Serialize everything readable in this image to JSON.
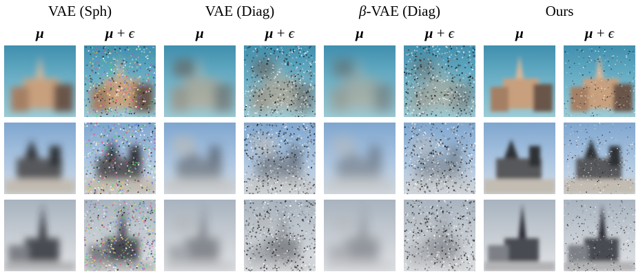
{
  "groups": [
    {
      "title": "VAE (Sph)"
    },
    {
      "title": "VAE (Diag)"
    },
    {
      "title": "-VAE (Diag)",
      "prefix": "β"
    },
    {
      "title": "Ours"
    }
  ],
  "column_labels": {
    "mu": "μ",
    "plus": "+",
    "eps": "ϵ"
  },
  "rows": [
    {
      "name": "row-1",
      "sky": "#4a9bb8",
      "scene": "church-spire"
    },
    {
      "name": "row-2",
      "sky": "#8aaed0",
      "scene": "church-tower"
    },
    {
      "name": "row-3",
      "sky": "#b8c2cc",
      "scene": "gothic-spire"
    }
  ]
}
